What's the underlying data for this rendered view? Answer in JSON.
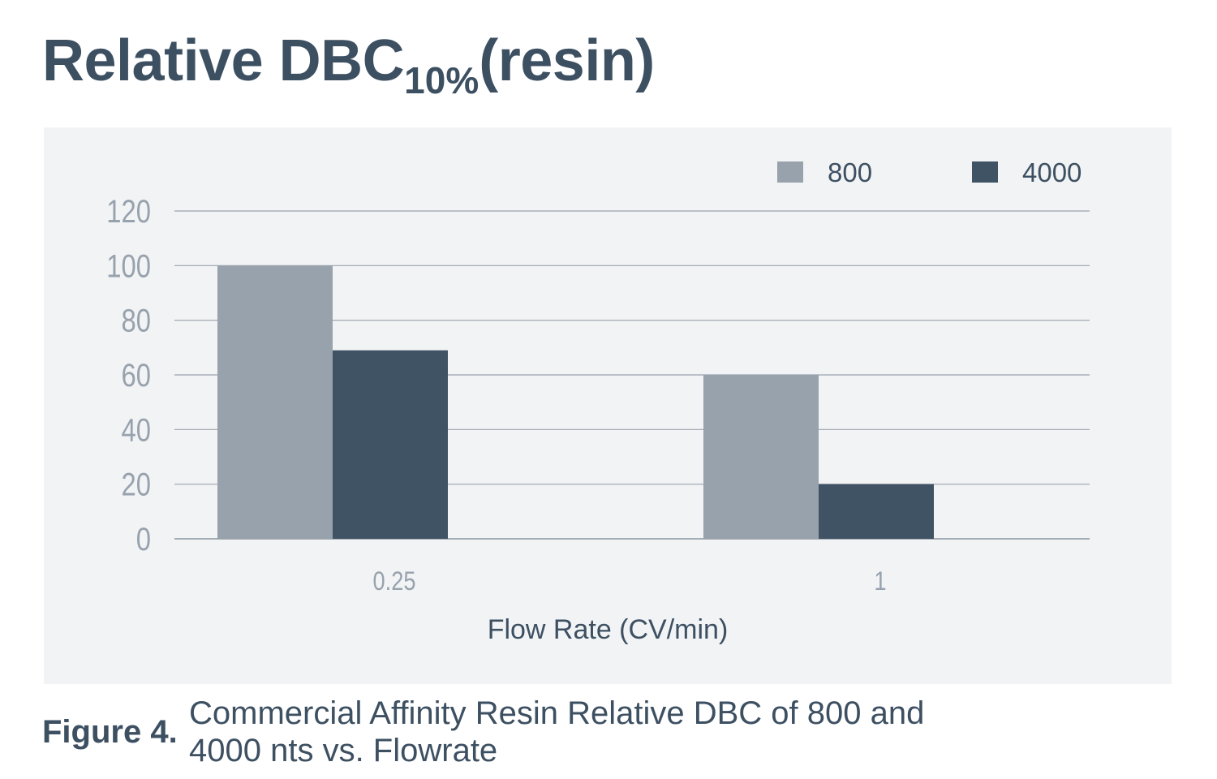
{
  "header": {
    "title_main": "Relative DBC",
    "title_sub": "10%",
    "title_tail": "(resin)"
  },
  "chart_data": {
    "type": "bar",
    "categories": [
      "0.25",
      "1"
    ],
    "series": [
      {
        "name": "800",
        "values": [
          100,
          60
        ],
        "color": "#97a2ad"
      },
      {
        "name": "4000",
        "values": [
          69,
          20
        ],
        "color": "#405364"
      }
    ],
    "xlabel": "Flow Rate (CV/min)",
    "ylabel": "",
    "ylim": [
      0,
      120
    ],
    "yticks": [
      "0",
      "20",
      "40",
      "60",
      "80",
      "100",
      "120"
    ],
    "grid": true,
    "legend": "top-right"
  },
  "caption": {
    "label": "Figure 4.",
    "text": "Commercial Affinity Resin Relative DBC of 800 and 4000 nts vs. Flowrate"
  }
}
